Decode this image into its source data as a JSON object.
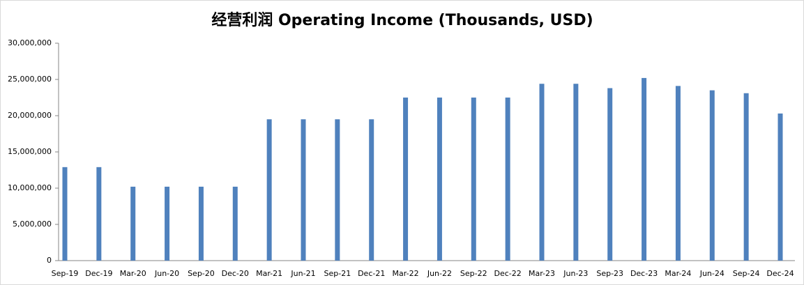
{
  "chart_data": {
    "type": "bar",
    "title": "经营利润 Operating Income (Thousands, USD)",
    "categories": [
      "Sep-19",
      "Dec-19",
      "Mar-20",
      "Jun-20",
      "Sep-20",
      "Dec-20",
      "Mar-21",
      "Jun-21",
      "Sep-21",
      "Dec-21",
      "Mar-22",
      "Jun-22",
      "Sep-22",
      "Dec-22",
      "Mar-23",
      "Jun-23",
      "Sep-23",
      "Dec-23",
      "Mar-24",
      "Jun-24",
      "Sep-24",
      "Dec-24"
    ],
    "values": [
      12900000,
      12900000,
      10200000,
      10200000,
      10200000,
      10200000,
      19500000,
      19500000,
      19500000,
      19500000,
      22500000,
      22500000,
      22500000,
      22500000,
      24400000,
      24400000,
      23800000,
      25200000,
      24100000,
      23500000,
      23100000,
      20300000
    ],
    "color": "#4f81bd",
    "ylim": [
      0,
      30000000
    ],
    "yticks": [
      0,
      {
        "value": 5000000,
        "label": "5,000,000"
      },
      {
        "value": 10000000,
        "label": "10,000,000"
      },
      {
        "value": 15000000,
        "label": "15,000,000"
      },
      {
        "value": 20000000,
        "label": "20,000,000"
      },
      {
        "value": 25000000,
        "label": "25,000,000"
      },
      {
        "value": 30000000,
        "label": "30,000,000"
      }
    ],
    "grid": false
  }
}
